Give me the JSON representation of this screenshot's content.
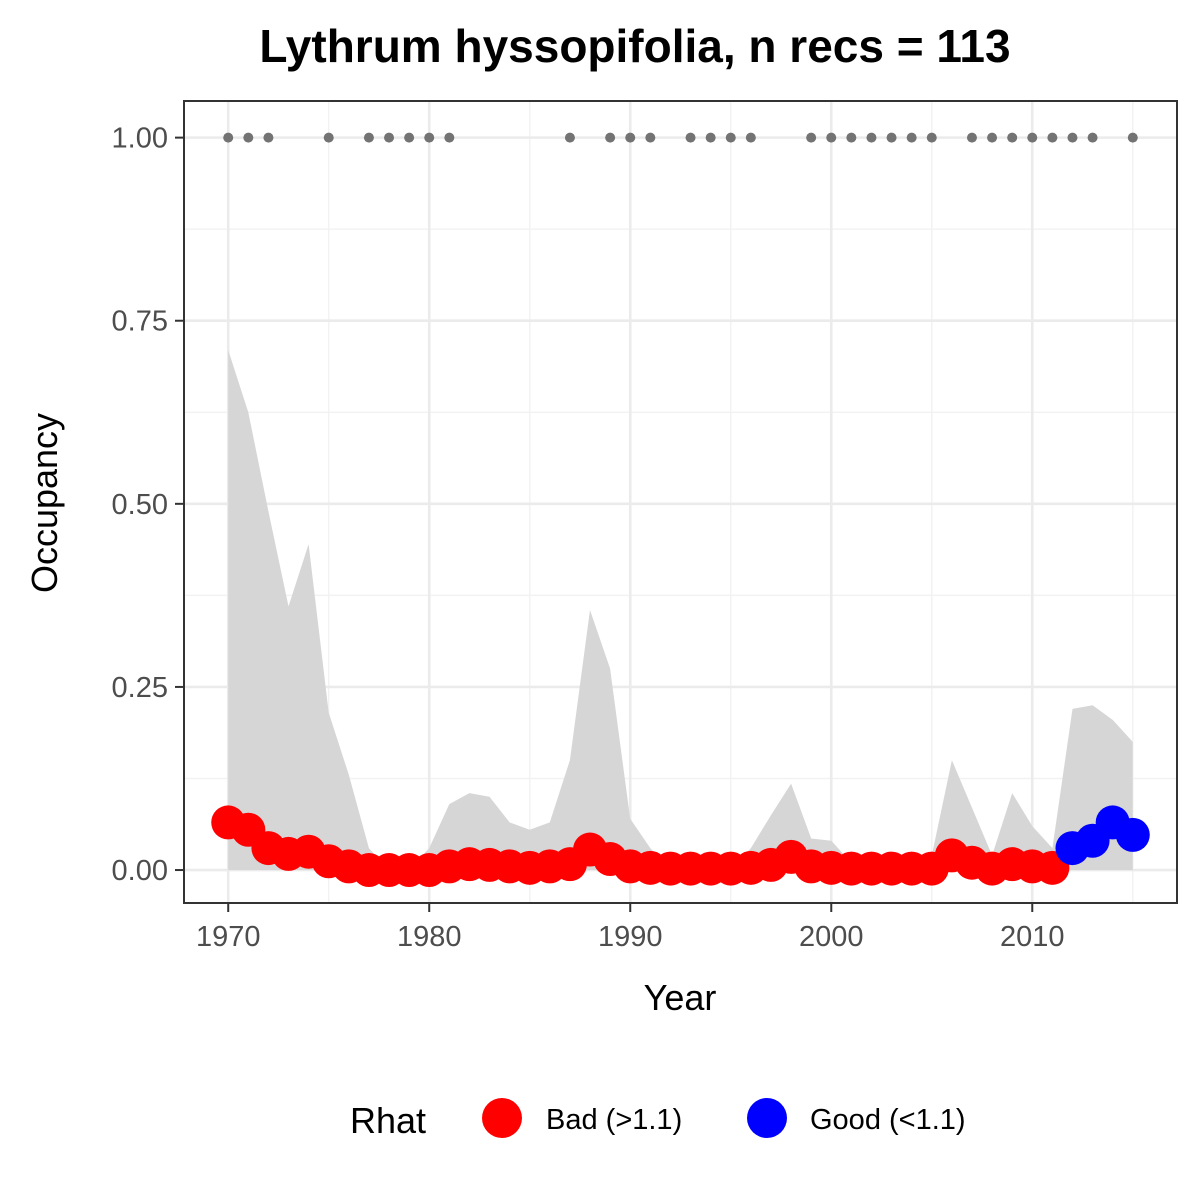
{
  "chart_data": {
    "type": "line",
    "title": "Lythrum hyssopifolia, n recs = 113",
    "xlabel": "Year",
    "ylabel": "Occupancy",
    "xlim": [
      1967.8,
      2017.2
    ],
    "ylim": [
      -0.045,
      1.05
    ],
    "x_ticks": [
      1970,
      1980,
      1990,
      2000,
      2010
    ],
    "y_ticks": [
      0,
      0.25,
      0.5,
      0.75,
      1.0
    ],
    "y_tick_labels": [
      "0.00",
      "0.25",
      "0.50",
      "0.75",
      "1.00"
    ],
    "grid": true,
    "legend": {
      "title": "Rhat",
      "position": "bottom",
      "entries": [
        {
          "label": "Bad (>1.1)",
          "color": "#ff0000"
        },
        {
          "label": "Good (<1.1)",
          "color": "#0000ff"
        }
      ]
    },
    "colors": {
      "bad": "#ff0000",
      "good": "#0000ff",
      "ribbon": "#d6d6d6",
      "record_points": "#737373"
    },
    "record_years": [
      1970,
      1971,
      1972,
      1975,
      1977,
      1978,
      1979,
      1980,
      1981,
      1987,
      1989,
      1990,
      1991,
      1993,
      1994,
      1995,
      1996,
      1999,
      2000,
      2001,
      2002,
      2003,
      2004,
      2005,
      2007,
      2008,
      2009,
      2010,
      2011,
      2012,
      2013,
      2015
    ],
    "years": [
      1970,
      1971,
      1972,
      1973,
      1974,
      1975,
      1976,
      1977,
      1978,
      1979,
      1980,
      1981,
      1982,
      1983,
      1984,
      1985,
      1986,
      1987,
      1988,
      1989,
      1990,
      1991,
      1992,
      1993,
      1994,
      1995,
      1996,
      1997,
      1998,
      1999,
      2000,
      2001,
      2002,
      2003,
      2004,
      2005,
      2006,
      2007,
      2008,
      2009,
      2010,
      2011,
      2012,
      2013,
      2014,
      2015
    ],
    "mean": [
      0.065,
      0.055,
      0.03,
      0.022,
      0.025,
      0.012,
      0.005,
      0.0,
      0.0,
      0.0,
      0.0,
      0.005,
      0.008,
      0.007,
      0.005,
      0.003,
      0.005,
      0.008,
      0.028,
      0.015,
      0.005,
      0.003,
      0.002,
      0.002,
      0.002,
      0.002,
      0.003,
      0.007,
      0.018,
      0.005,
      0.003,
      0.002,
      0.002,
      0.002,
      0.002,
      0.002,
      0.02,
      0.01,
      0.002,
      0.008,
      0.005,
      0.003,
      0.03,
      0.04,
      0.065,
      0.048
    ],
    "rhat": [
      "Bad",
      "Bad",
      "Bad",
      "Bad",
      "Bad",
      "Bad",
      "Bad",
      "Bad",
      "Bad",
      "Bad",
      "Bad",
      "Bad",
      "Bad",
      "Bad",
      "Bad",
      "Bad",
      "Bad",
      "Bad",
      "Bad",
      "Bad",
      "Bad",
      "Bad",
      "Bad",
      "Bad",
      "Bad",
      "Bad",
      "Bad",
      "Bad",
      "Bad",
      "Bad",
      "Bad",
      "Bad",
      "Bad",
      "Bad",
      "Bad",
      "Bad",
      "Bad",
      "Bad",
      "Bad",
      "Bad",
      "Bad",
      "Bad",
      "Good",
      "Good",
      "Good",
      "Good"
    ],
    "upper": [
      0.71,
      0.625,
      0.49,
      0.36,
      0.445,
      0.215,
      0.13,
      0.03,
      0.0,
      0.0,
      0.03,
      0.09,
      0.105,
      0.1,
      0.065,
      0.055,
      0.065,
      0.15,
      0.355,
      0.275,
      0.07,
      0.03,
      0.0,
      0.0,
      0.0,
      0.0,
      0.03,
      0.075,
      0.118,
      0.043,
      0.04,
      0.01,
      0.0,
      0.0,
      0.0,
      0.02,
      0.15,
      0.085,
      0.02,
      0.105,
      0.06,
      0.03,
      0.22,
      0.225,
      0.205,
      0.175
    ],
    "lower": [
      0,
      0,
      0,
      0,
      0,
      0,
      0,
      0,
      0,
      0,
      0,
      0,
      0,
      0,
      0,
      0,
      0,
      0,
      0,
      0,
      0,
      0,
      0,
      0,
      0,
      0,
      0,
      0,
      0,
      0,
      0,
      0,
      0,
      0,
      0,
      0,
      0,
      0,
      0,
      0,
      0,
      0,
      0,
      0,
      0,
      0
    ]
  }
}
